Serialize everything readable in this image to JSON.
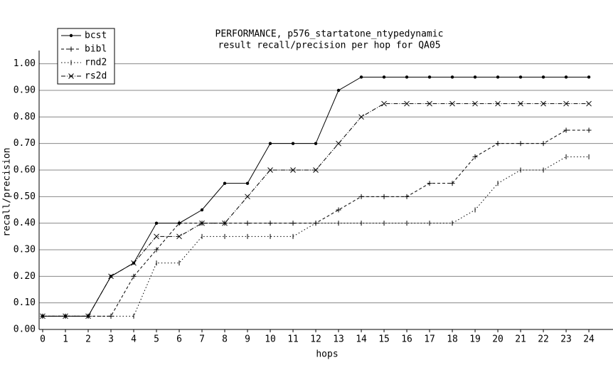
{
  "chart_data": {
    "type": "line",
    "title": [
      "PERFORMANCE, p576_startatone_ntypedynamic",
      "result recall/precision per hop for QA05"
    ],
    "xlabel": "hops",
    "ylabel": "recall/precision",
    "x": [
      0,
      1,
      2,
      3,
      4,
      5,
      6,
      7,
      8,
      9,
      10,
      11,
      12,
      13,
      14,
      15,
      16,
      17,
      18,
      19,
      20,
      21,
      22,
      23,
      24
    ],
    "xlim": [
      -0.625,
      25.06
    ],
    "xticks": [
      0,
      1,
      2,
      3,
      4,
      5,
      6,
      7,
      8,
      9,
      10,
      11,
      12,
      13,
      14,
      15,
      16,
      17,
      18,
      19,
      20,
      21,
      22,
      23,
      24
    ],
    "ylim": [
      0,
      1.05
    ],
    "yticks": [
      {
        "value": 0,
        "label": "0.00"
      },
      {
        "value": 0.1,
        "label": "0.10"
      },
      {
        "value": 0.2,
        "label": "0.20"
      },
      {
        "value": 0.3,
        "label": "0.30"
      },
      {
        "value": 0.4,
        "label": "0.40"
      },
      {
        "value": 0.5,
        "label": "0.50"
      },
      {
        "value": 0.6,
        "label": "0.60"
      },
      {
        "value": 0.7,
        "label": "0.70"
      },
      {
        "value": 0.8,
        "label": "0.80"
      },
      {
        "value": 0.9,
        "label": "0.90"
      },
      {
        "value": 1,
        "label": "1.00"
      }
    ],
    "grid": true,
    "legend": "upper left",
    "series": [
      {
        "name": "bcst",
        "color": "#000000",
        "dash": "solid",
        "marker": "dot",
        "values": [
          0.05,
          0.05,
          0.05,
          0.2,
          0.25,
          0.4,
          0.4,
          0.45,
          0.55,
          0.55,
          0.7,
          0.7,
          0.7,
          0.9,
          0.95,
          0.95,
          0.95,
          0.95,
          0.95,
          0.95,
          0.95,
          0.95,
          0.95,
          0.95,
          0.95
        ]
      },
      {
        "name": "bibl",
        "color": "#000000",
        "dash": "dashed",
        "marker": "plus",
        "values": [
          0.05,
          0.05,
          0.05,
          0.05,
          0.2,
          0.3,
          0.4,
          0.4,
          0.4,
          0.4,
          0.4,
          0.4,
          0.4,
          0.45,
          0.5,
          0.5,
          0.5,
          0.55,
          0.55,
          0.65,
          0.7,
          0.7,
          0.7,
          0.75,
          0.75
        ]
      },
      {
        "name": "rnd2",
        "color": "#000000",
        "dash": "dotted",
        "marker": "vbar",
        "values": [
          0.05,
          0.05,
          0.05,
          0.05,
          0.05,
          0.25,
          0.25,
          0.35,
          0.35,
          0.35,
          0.35,
          0.35,
          0.4,
          0.4,
          0.4,
          0.4,
          0.4,
          0.4,
          0.4,
          0.45,
          0.55,
          0.6,
          0.6,
          0.65,
          0.65
        ]
      },
      {
        "name": "rs2d",
        "color": "#000000",
        "dash": "dashdot",
        "marker": "cross",
        "values": [
          0.05,
          0.05,
          0.05,
          0.2,
          0.25,
          0.35,
          0.35,
          0.4,
          0.4,
          0.5,
          0.6,
          0.6,
          0.6,
          0.7,
          0.8,
          0.85,
          0.85,
          0.85,
          0.85,
          0.85,
          0.85,
          0.85,
          0.85,
          0.85,
          0.85
        ]
      }
    ]
  }
}
